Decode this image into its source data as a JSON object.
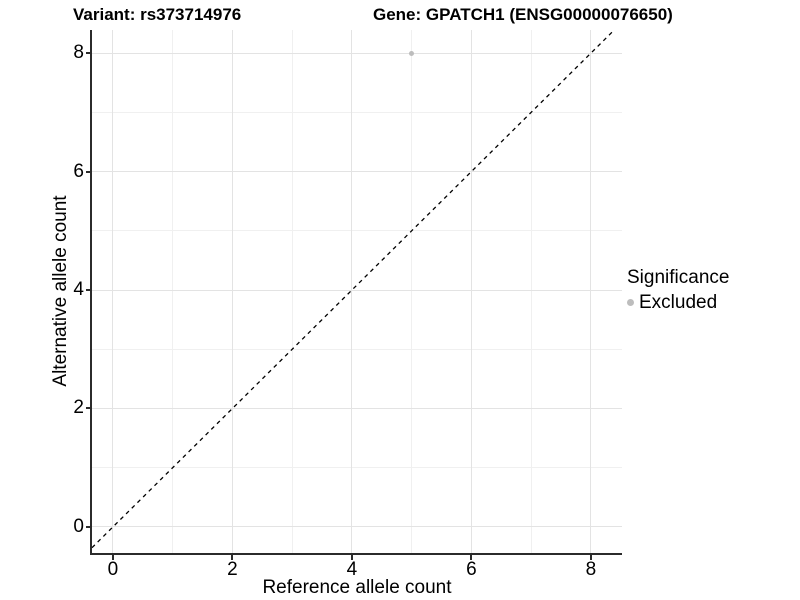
{
  "chart_data": {
    "type": "scatter",
    "title_left": "Variant: rs373714976",
    "title_right": "Gene: GPATCH1 (ENSG00000076650)",
    "xlabel": "Reference allele count",
    "ylabel": "Alternative allele count",
    "x_ticks": [
      0,
      2,
      4,
      6,
      8
    ],
    "y_ticks": [
      0,
      2,
      4,
      6,
      8
    ],
    "x_minor": [
      1,
      3,
      5,
      7
    ],
    "y_minor": [
      1,
      3,
      5,
      7
    ],
    "xlim": [
      -0.35,
      8.52
    ],
    "ylim": [
      -0.44,
      8.39
    ],
    "grid": true,
    "identity_line": {
      "slope": 1,
      "intercept": 0,
      "style": "dashed",
      "color": "#000000"
    },
    "points": [
      {
        "x": 5,
        "y": 8,
        "series": "Excluded"
      }
    ],
    "legend": {
      "title": "Significance",
      "position": "right",
      "items": [
        {
          "label": "Excluded",
          "color": "#BDBDBD"
        }
      ]
    },
    "colors": {
      "point_excluded": "#BDBDBD",
      "grid_major": "#E3E3E3",
      "grid_minor": "#F0F0F0",
      "axis": "#2b2b2b",
      "text": "#000000"
    }
  }
}
